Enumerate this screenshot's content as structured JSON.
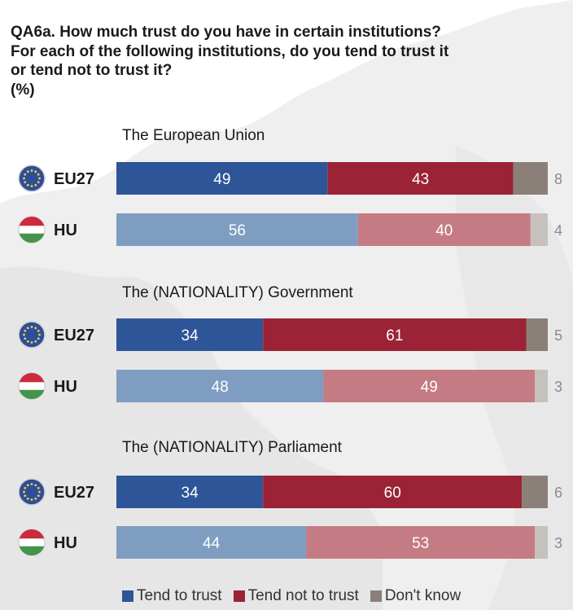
{
  "title_lines": [
    "QA6a. How much trust do you have in certain institutions?",
    "For each of the following institutions, do you tend to trust it",
    "or tend not to trust it?",
    "(%)"
  ],
  "legend": [
    {
      "label": "Tend to trust",
      "color": "#2e5597"
    },
    {
      "label": "Tend not to trust",
      "color": "#9b2335"
    },
    {
      "label": "Don't know",
      "color": "#8a8079"
    }
  ],
  "chart_data": {
    "type": "bar",
    "orientation": "horizontal",
    "stacked": true,
    "categories_order": [
      "Tend to trust",
      "Tend not to trust",
      "Don't know"
    ],
    "groups": [
      {
        "title": "The European Union",
        "rows": [
          {
            "label": "EU27",
            "flag": "eu-flag-icon",
            "values": [
              49,
              43,
              8
            ]
          },
          {
            "label": "HU",
            "flag": "hungary-flag-icon",
            "values": [
              56,
              40,
              4
            ]
          }
        ]
      },
      {
        "title": "The (NATIONALITY) Government",
        "rows": [
          {
            "label": "EU27",
            "flag": "eu-flag-icon",
            "values": [
              34,
              61,
              5
            ]
          },
          {
            "label": "HU",
            "flag": "hungary-flag-icon",
            "values": [
              48,
              49,
              3
            ]
          }
        ]
      },
      {
        "title": "The (NATIONALITY) Parliament",
        "rows": [
          {
            "label": "EU27",
            "flag": "eu-flag-icon",
            "values": [
              34,
              60,
              6
            ]
          },
          {
            "label": "HU",
            "flag": "hungary-flag-icon",
            "values": [
              44,
              53,
              3
            ]
          }
        ]
      }
    ],
    "colors": {
      "EU27": [
        "#2e5597",
        "#9b2335",
        "#8a8079"
      ],
      "HU": [
        "#7f9dc0",
        "#c57b83",
        "#c6c1bc"
      ]
    },
    "xlim": [
      0,
      100
    ]
  }
}
